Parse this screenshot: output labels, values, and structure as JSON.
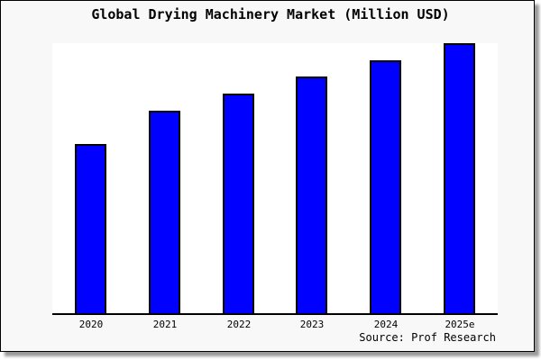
{
  "page": {
    "background": "#ffffff",
    "card_background": "#f8f8f8",
    "plot_background": "#ffffff",
    "text_color": "#000000"
  },
  "footer": {
    "source": "Source: Prof Research"
  },
  "chart_data": {
    "type": "bar",
    "title": "Global Drying Machinery Market (Million USD)",
    "categories": [
      "2020",
      "2021",
      "2022",
      "2023",
      "2024",
      "2025e"
    ],
    "values": [
      62.7,
      75.0,
      81.3,
      87.7,
      93.7,
      100.0
    ],
    "values_unit": "relative index estimated from bar heights; tallest bar (2025e) = 100, no y-axis scale shown",
    "xlabel": "",
    "ylabel": "",
    "ylim": [
      0,
      100
    ],
    "grid": false,
    "legend": "none",
    "y_axis_visible": false,
    "x_axis_line_color": "#000000",
    "bar_color": "#0000ff",
    "bar_border_color": "#000000"
  }
}
